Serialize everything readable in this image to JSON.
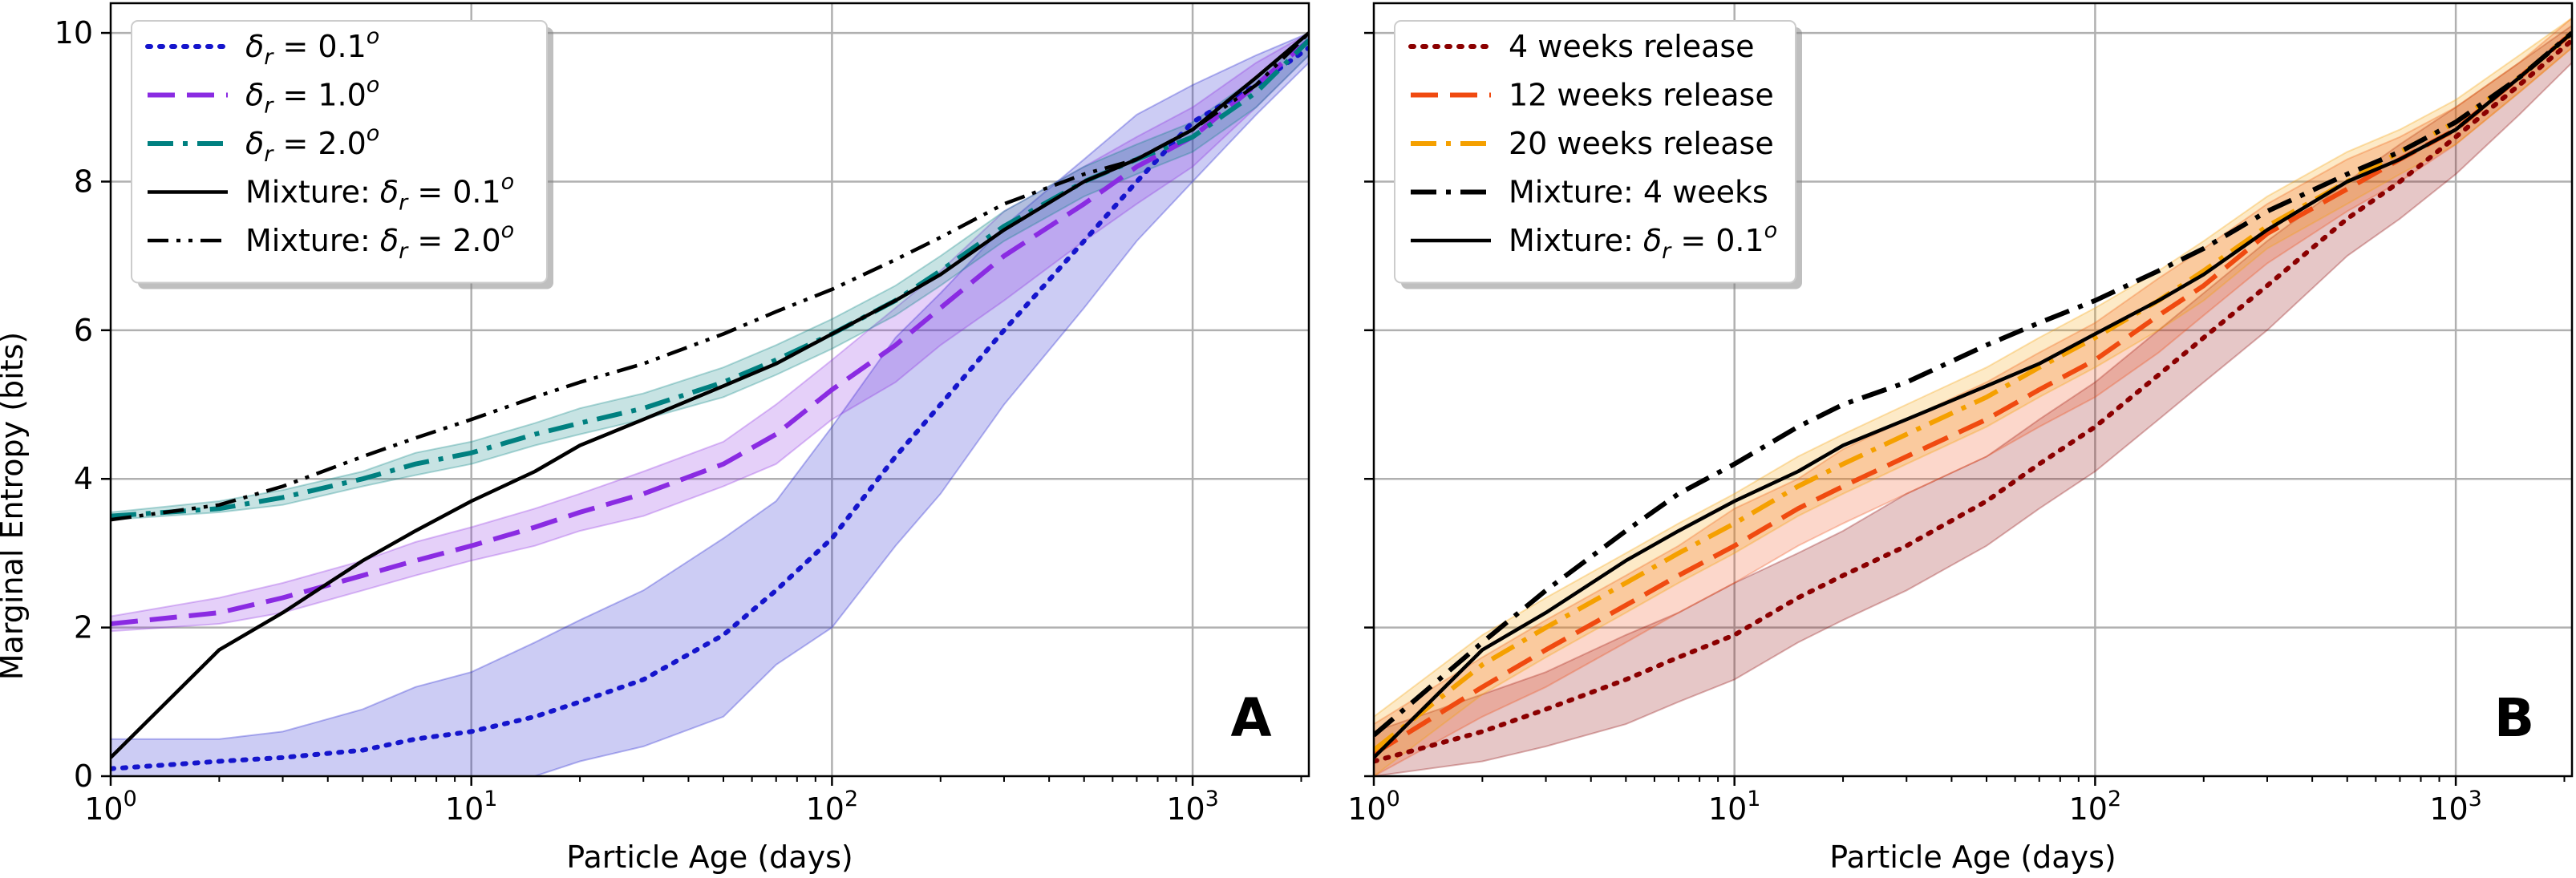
{
  "figure": {
    "ylabel": "Marginal Entropy (bits)",
    "xlabel": "Particle Age (days)"
  },
  "chart_data": [
    {
      "type": "line",
      "panel_label": "A",
      "xscale": "log",
      "xlim": [
        1,
        2100
      ],
      "ylim": [
        0,
        10.4
      ],
      "x_ticks": [
        {
          "value": 1,
          "base": "10",
          "exp": "0"
        },
        {
          "value": 10,
          "base": "10",
          "exp": "1"
        },
        {
          "value": 100,
          "base": "10",
          "exp": "2"
        },
        {
          "value": 1000,
          "base": "10",
          "exp": "3"
        }
      ],
      "y_ticks": [
        {
          "value": 0,
          "label": "0"
        },
        {
          "value": 2,
          "label": "2"
        },
        {
          "value": 4,
          "label": "4"
        },
        {
          "value": 6,
          "label": "6"
        },
        {
          "value": 8,
          "label": "8"
        },
        {
          "value": 10,
          "label": "10"
        }
      ],
      "xlabel": "Particle Age (days)",
      "ylabel": "Marginal Entropy (bits)",
      "grid": true,
      "legend_position": "upper-left",
      "series": [
        {
          "name_parts": [
            "δ",
            "r",
            " = 0.1",
            "o"
          ],
          "color": "#1515cc",
          "dash": "dotted",
          "x": [
            1,
            2,
            3,
            5,
            7,
            10,
            15,
            20,
            30,
            50,
            70,
            100,
            150,
            200,
            300,
            500,
            700,
            1000,
            1500,
            2100
          ],
          "y": [
            0.1,
            0.2,
            0.25,
            0.35,
            0.5,
            0.6,
            0.8,
            1.0,
            1.3,
            1.9,
            2.5,
            3.2,
            4.3,
            5.0,
            6.0,
            7.2,
            8.0,
            8.8,
            9.3,
            9.8
          ],
          "band_low": [
            0.0,
            0.0,
            0.0,
            0.0,
            0.0,
            0.0,
            0.0,
            0.2,
            0.4,
            0.8,
            1.5,
            2.0,
            3.1,
            3.8,
            5.0,
            6.3,
            7.2,
            8.0,
            8.9,
            9.6
          ],
          "band_high": [
            0.5,
            0.5,
            0.6,
            0.9,
            1.2,
            1.4,
            1.8,
            2.1,
            2.5,
            3.2,
            3.7,
            4.7,
            5.9,
            6.5,
            7.4,
            8.3,
            8.9,
            9.3,
            9.7,
            10.0
          ]
        },
        {
          "name_parts": [
            "δ",
            "r",
            " = 1.0",
            "o"
          ],
          "color": "#8a2be2",
          "dash": "dashed",
          "x": [
            1,
            2,
            3,
            5,
            7,
            10,
            15,
            20,
            30,
            50,
            70,
            100,
            150,
            200,
            300,
            500,
            700,
            1000,
            1500,
            2100
          ],
          "y": [
            2.05,
            2.2,
            2.4,
            2.7,
            2.9,
            3.1,
            3.35,
            3.55,
            3.8,
            4.2,
            4.6,
            5.2,
            5.8,
            6.3,
            7.0,
            7.7,
            8.2,
            8.6,
            9.3,
            9.9
          ],
          "band_low": [
            1.95,
            2.05,
            2.2,
            2.5,
            2.7,
            2.9,
            3.1,
            3.3,
            3.5,
            3.9,
            4.2,
            4.8,
            5.3,
            5.8,
            6.4,
            7.2,
            7.7,
            8.2,
            9.0,
            9.7
          ],
          "band_high": [
            2.15,
            2.4,
            2.6,
            2.9,
            3.15,
            3.35,
            3.6,
            3.8,
            4.1,
            4.5,
            5.0,
            5.6,
            6.3,
            6.8,
            7.6,
            8.2,
            8.6,
            9.0,
            9.6,
            10.0
          ]
        },
        {
          "name_parts": [
            "δ",
            "r",
            " = 2.0",
            "o"
          ],
          "color": "#008080",
          "dash": "dashdot",
          "x": [
            1,
            2,
            3,
            5,
            7,
            10,
            15,
            20,
            30,
            50,
            70,
            100,
            150,
            200,
            300,
            500,
            700,
            1000,
            1500,
            2100
          ],
          "y": [
            3.5,
            3.6,
            3.75,
            4.0,
            4.2,
            4.35,
            4.6,
            4.75,
            4.95,
            5.3,
            5.6,
            5.95,
            6.4,
            6.8,
            7.4,
            8.0,
            8.3,
            8.6,
            9.2,
            9.9
          ],
          "band_low": [
            3.45,
            3.55,
            3.65,
            3.9,
            4.05,
            4.2,
            4.45,
            4.6,
            4.8,
            5.1,
            5.4,
            5.75,
            6.2,
            6.6,
            7.2,
            7.8,
            8.1,
            8.4,
            9.0,
            9.7
          ],
          "band_high": [
            3.55,
            3.7,
            3.85,
            4.1,
            4.35,
            4.5,
            4.75,
            4.95,
            5.15,
            5.5,
            5.8,
            6.15,
            6.6,
            7.0,
            7.6,
            8.2,
            8.5,
            8.8,
            9.4,
            10.0
          ]
        },
        {
          "name_parts": [
            "Mixture: δ",
            "r",
            " = 0.1",
            "o"
          ],
          "color": "#000000",
          "dash": "solid",
          "x": [
            1,
            2,
            3,
            5,
            7,
            10,
            15,
            20,
            30,
            50,
            70,
            100,
            150,
            200,
            300,
            500,
            700,
            1000,
            1500,
            2100
          ],
          "y": [
            0.25,
            1.7,
            2.2,
            2.9,
            3.3,
            3.7,
            4.1,
            4.45,
            4.8,
            5.25,
            5.55,
            5.95,
            6.4,
            6.75,
            7.35,
            8.0,
            8.3,
            8.7,
            9.4,
            10.0
          ]
        },
        {
          "name_parts": [
            "Mixture: δ",
            "r",
            " = 2.0",
            "o"
          ],
          "color": "#000000",
          "dash": "dashdotdot",
          "x": [
            1,
            2,
            3,
            5,
            7,
            10,
            15,
            20,
            30,
            50,
            70,
            100,
            150,
            200,
            300,
            500,
            700,
            1000,
            1500,
            2100
          ],
          "y": [
            3.45,
            3.65,
            3.9,
            4.3,
            4.55,
            4.8,
            5.1,
            5.3,
            5.55,
            5.95,
            6.25,
            6.55,
            6.95,
            7.25,
            7.7,
            8.1,
            8.3,
            8.7,
            9.3,
            10.0
          ]
        }
      ]
    },
    {
      "type": "line",
      "panel_label": "B",
      "xscale": "log",
      "xlim": [
        1,
        2100
      ],
      "ylim": [
        0,
        10.4
      ],
      "x_ticks": [
        {
          "value": 1,
          "base": "10",
          "exp": "0"
        },
        {
          "value": 10,
          "base": "10",
          "exp": "1"
        },
        {
          "value": 100,
          "base": "10",
          "exp": "2"
        },
        {
          "value": 1000,
          "base": "10",
          "exp": "3"
        }
      ],
      "y_ticks": [
        {
          "value": 0,
          "label": ""
        },
        {
          "value": 2,
          "label": ""
        },
        {
          "value": 4,
          "label": ""
        },
        {
          "value": 6,
          "label": ""
        },
        {
          "value": 8,
          "label": ""
        },
        {
          "value": 10,
          "label": ""
        }
      ],
      "xlabel": "Particle Age (days)",
      "grid": true,
      "legend_position": "upper-left",
      "series": [
        {
          "name_parts": [
            "4 weeks release"
          ],
          "color": "#8b0000",
          "dash": "dotted",
          "x": [
            1,
            2,
            3,
            5,
            7,
            10,
            15,
            20,
            30,
            50,
            70,
            100,
            150,
            200,
            300,
            500,
            700,
            1000,
            1500,
            2100
          ],
          "y": [
            0.2,
            0.6,
            0.9,
            1.3,
            1.6,
            1.9,
            2.4,
            2.7,
            3.1,
            3.7,
            4.2,
            4.7,
            5.4,
            5.9,
            6.6,
            7.5,
            8.0,
            8.6,
            9.3,
            9.9
          ],
          "band_low": [
            0.0,
            0.2,
            0.4,
            0.7,
            1.0,
            1.3,
            1.8,
            2.1,
            2.5,
            3.1,
            3.6,
            4.1,
            4.8,
            5.3,
            6.0,
            7.0,
            7.5,
            8.1,
            8.9,
            9.6
          ],
          "band_high": [
            0.6,
            1.1,
            1.4,
            1.9,
            2.2,
            2.6,
            3.0,
            3.3,
            3.8,
            4.3,
            4.8,
            5.3,
            6.0,
            6.5,
            7.2,
            8.0,
            8.5,
            9.0,
            9.6,
            10.1
          ]
        },
        {
          "name_parts": [
            "12 weeks release"
          ],
          "color": "#f04a10",
          "dash": "dashed",
          "x": [
            1,
            2,
            3,
            5,
            7,
            10,
            15,
            20,
            30,
            50,
            70,
            100,
            150,
            200,
            300,
            500,
            700,
            1000,
            1500,
            2100
          ],
          "y": [
            0.3,
            1.2,
            1.7,
            2.3,
            2.7,
            3.1,
            3.6,
            3.9,
            4.3,
            4.8,
            5.2,
            5.6,
            6.2,
            6.6,
            7.3,
            7.9,
            8.3,
            8.7,
            9.4,
            10.0
          ],
          "band_low": [
            0.0,
            0.8,
            1.2,
            1.8,
            2.2,
            2.6,
            3.1,
            3.4,
            3.8,
            4.3,
            4.7,
            5.1,
            5.7,
            6.2,
            6.9,
            7.6,
            8.0,
            8.5,
            9.2,
            9.8
          ],
          "band_high": [
            0.7,
            1.6,
            2.1,
            2.7,
            3.1,
            3.6,
            4.0,
            4.4,
            4.8,
            5.3,
            5.7,
            6.1,
            6.7,
            7.1,
            7.7,
            8.3,
            8.6,
            9.0,
            9.6,
            10.2
          ]
        },
        {
          "name_parts": [
            "20 weeks release"
          ],
          "color": "#f5a000",
          "dash": "dashdot",
          "x": [
            1,
            2,
            3,
            5,
            7,
            10,
            15,
            20,
            30,
            50,
            70,
            100,
            150,
            200,
            300,
            500,
            700,
            1000,
            1500,
            2100
          ],
          "y": [
            0.35,
            1.5,
            2.0,
            2.6,
            3.0,
            3.4,
            3.9,
            4.2,
            4.6,
            5.1,
            5.5,
            5.9,
            6.4,
            6.8,
            7.4,
            8.0,
            8.4,
            8.8,
            9.4,
            10.0
          ],
          "band_low": [
            0.0,
            1.1,
            1.6,
            2.2,
            2.6,
            3.0,
            3.5,
            3.8,
            4.2,
            4.7,
            5.1,
            5.5,
            6.0,
            6.4,
            7.1,
            7.7,
            8.1,
            8.5,
            9.2,
            9.8
          ],
          "band_high": [
            0.8,
            1.9,
            2.4,
            3.0,
            3.4,
            3.8,
            4.3,
            4.6,
            5.0,
            5.5,
            5.9,
            6.3,
            6.8,
            7.2,
            7.8,
            8.4,
            8.7,
            9.1,
            9.7,
            10.2
          ]
        },
        {
          "name_parts": [
            "Mixture: 4 weeks"
          ],
          "color": "#000000",
          "dash": "dashdot",
          "x": [
            1,
            2,
            3,
            5,
            7,
            10,
            15,
            20,
            30,
            50,
            70,
            100,
            150,
            200,
            300,
            500,
            700,
            1000,
            1500,
            2100
          ],
          "y": [
            0.55,
            1.8,
            2.5,
            3.3,
            3.8,
            4.2,
            4.7,
            5.0,
            5.3,
            5.8,
            6.1,
            6.4,
            6.8,
            7.1,
            7.6,
            8.1,
            8.4,
            8.8,
            9.4,
            10.0
          ]
        },
        {
          "name_parts": [
            "Mixture: δ",
            "r",
            " = 0.1",
            "o"
          ],
          "color": "#000000",
          "dash": "solid",
          "x": [
            1,
            2,
            3,
            5,
            7,
            10,
            15,
            20,
            30,
            50,
            70,
            100,
            150,
            200,
            300,
            500,
            700,
            1000,
            1500,
            2100
          ],
          "y": [
            0.25,
            1.7,
            2.2,
            2.9,
            3.3,
            3.7,
            4.1,
            4.45,
            4.8,
            5.25,
            5.55,
            5.95,
            6.4,
            6.75,
            7.35,
            8.0,
            8.3,
            8.7,
            9.4,
            10.0
          ]
        }
      ]
    }
  ]
}
